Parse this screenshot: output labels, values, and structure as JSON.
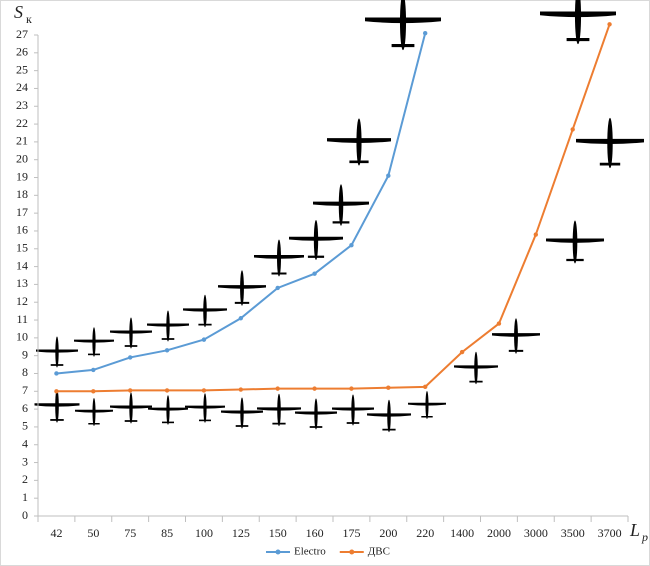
{
  "chart_data": {
    "type": "line",
    "y_label": "S",
    "y_label_subscript": "к",
    "x_label": "L",
    "x_label_subscript": "p",
    "categories": [
      "42",
      "50",
      "75",
      "85",
      "100",
      "125",
      "150",
      "160",
      "175",
      "200",
      "220",
      "1400",
      "2000",
      "3000",
      "3500",
      "3700"
    ],
    "series": [
      {
        "name": "Electro",
        "color": "#5b9bd5",
        "values": [
          8.0,
          8.2,
          8.9,
          9.3,
          9.9,
          11.1,
          12.8,
          13.6,
          15.2,
          19.1,
          27.1,
          null,
          null,
          null,
          null,
          null
        ]
      },
      {
        "name": "ДВС",
        "color": "#ed7d31",
        "values": [
          7.0,
          7.0,
          7.05,
          7.05,
          7.05,
          7.1,
          7.15,
          7.15,
          7.15,
          7.2,
          7.25,
          9.2,
          10.8,
          15.8,
          21.7,
          27.6
        ]
      }
    ],
    "ylim": [
      0,
      27
    ],
    "yticks": [
      0,
      1,
      2,
      3,
      4,
      5,
      6,
      7,
      8,
      9,
      10,
      11,
      12,
      13,
      14,
      15,
      16,
      17,
      18,
      19,
      20,
      21,
      22,
      23,
      24,
      25,
      26,
      27
    ],
    "grid": false,
    "legend": "bottom"
  }
}
